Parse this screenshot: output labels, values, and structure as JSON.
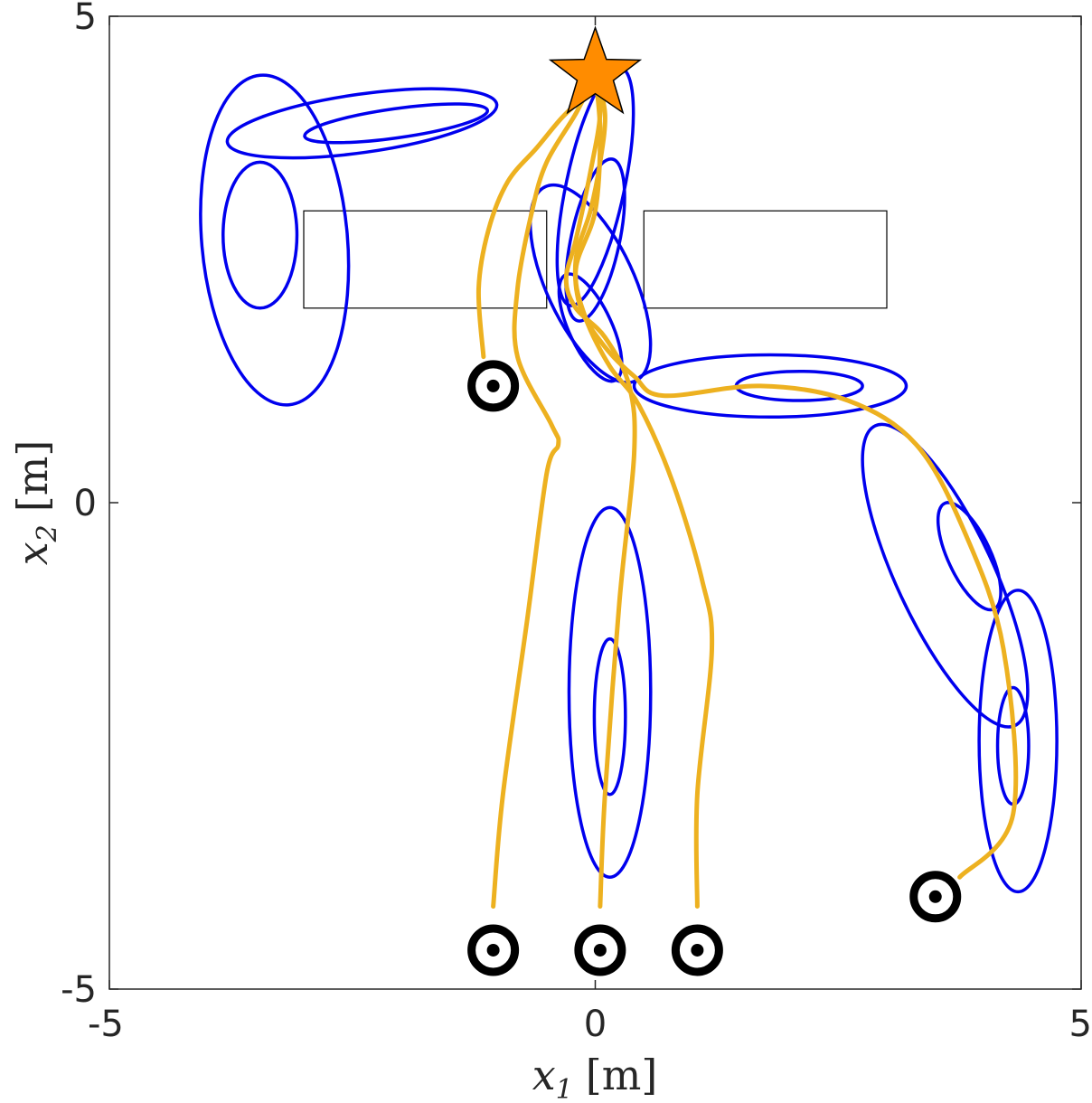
{
  "chart_data": {
    "type": "line",
    "title": "",
    "xlabel": {
      "var": "x",
      "sub": "1",
      "unit": "[m]"
    },
    "ylabel": {
      "var": "x",
      "sub": "2",
      "unit": "[m]"
    },
    "xlim": [
      -5,
      5
    ],
    "ylim": [
      -5,
      5
    ],
    "x_ticks": [
      -5,
      0,
      5
    ],
    "y_ticks": [
      -5,
      0,
      5
    ],
    "x_tick_labels": [
      "-5",
      "0",
      "5"
    ],
    "y_tick_labels": [
      "-5",
      "0",
      "5"
    ],
    "grid": false,
    "colors": {
      "trajectory": "#EDB120",
      "ellipse": "#0000EE",
      "obstacle": "#000000",
      "goal": "#FF8C00",
      "start": "#000000"
    },
    "obstacles": [
      {
        "x": [
          -3.0,
          -0.5
        ],
        "y": [
          2.0,
          3.0
        ]
      },
      {
        "x": [
          0.5,
          3.0
        ],
        "y": [
          2.0,
          3.0
        ]
      }
    ],
    "goal": {
      "x": 0.0,
      "y": 4.4
    },
    "starts": [
      {
        "x": -1.05,
        "y": 1.2
      },
      {
        "x": -1.05,
        "y": -4.6
      },
      {
        "x": 0.05,
        "y": -4.6
      },
      {
        "x": 1.05,
        "y": -4.6
      },
      {
        "x": 3.5,
        "y": -4.05
      }
    ],
    "ellipses": [
      {
        "cx": -2.4,
        "cy": 3.9,
        "rx": 1.4,
        "ry": 0.3,
        "angle": 8
      },
      {
        "cx": -2.05,
        "cy": 3.9,
        "rx": 0.95,
        "ry": 0.15,
        "angle": 8
      },
      {
        "cx": -3.3,
        "cy": 2.7,
        "rx": 0.75,
        "ry": 1.7,
        "angle": 5
      },
      {
        "cx": -3.45,
        "cy": 2.75,
        "rx": 0.38,
        "ry": 0.75,
        "angle": 0
      },
      {
        "cx": 0.0,
        "cy": 3.25,
        "rx": 0.3,
        "ry": 1.25,
        "angle": -12
      },
      {
        "cx": 0.0,
        "cy": 2.7,
        "rx": 0.25,
        "ry": 0.85,
        "angle": -12
      },
      {
        "cx": -0.05,
        "cy": 2.25,
        "rx": 0.45,
        "ry": 1.1,
        "angle": 25
      },
      {
        "cx": -0.05,
        "cy": 1.8,
        "rx": 0.22,
        "ry": 0.6,
        "angle": 25
      },
      {
        "cx": 1.8,
        "cy": 1.2,
        "rx": 1.4,
        "ry": 0.32,
        "angle": 0
      },
      {
        "cx": 2.1,
        "cy": 1.2,
        "rx": 0.65,
        "ry": 0.15,
        "angle": 0
      },
      {
        "cx": 3.6,
        "cy": -0.75,
        "rx": 0.5,
        "ry": 1.7,
        "angle": 25
      },
      {
        "cx": 3.85,
        "cy": -0.55,
        "rx": 0.22,
        "ry": 0.6,
        "angle": 25
      },
      {
        "cx": 4.35,
        "cy": -2.45,
        "rx": 0.4,
        "ry": 1.55,
        "angle": 0
      },
      {
        "cx": 4.3,
        "cy": -2.5,
        "rx": 0.16,
        "ry": 0.6,
        "angle": 0
      },
      {
        "cx": 0.15,
        "cy": -1.95,
        "rx": 0.42,
        "ry": 1.9,
        "angle": 0
      },
      {
        "cx": 0.15,
        "cy": -2.2,
        "rx": 0.16,
        "ry": 0.8,
        "angle": 0
      }
    ],
    "series": [
      {
        "x": [
          -1.15,
          -1.2,
          -1.1,
          -0.9,
          -0.6,
          -0.35,
          -0.1,
          0.0
        ],
        "y": [
          1.5,
          2.2,
          2.8,
          3.3,
          3.65,
          3.95,
          4.2,
          4.4
        ]
      },
      {
        "x": [
          -1.05,
          -0.95,
          -0.7,
          -0.5,
          -0.38,
          -0.45,
          -0.8,
          -0.8,
          -0.65,
          -0.5,
          -0.2,
          0.0
        ],
        "y": [
          -4.15,
          -3.0,
          -1.2,
          0.3,
          0.6,
          0.8,
          1.5,
          2.2,
          3.0,
          3.5,
          4.0,
          4.4
        ]
      },
      {
        "x": [
          0.05,
          0.1,
          0.25,
          0.4,
          0.35,
          0.1,
          -0.2,
          -0.3,
          -0.2,
          -0.05,
          0.05,
          0.0
        ],
        "y": [
          -4.15,
          -3.0,
          -1.0,
          0.5,
          1.2,
          1.7,
          2.0,
          2.3,
          2.7,
          3.4,
          4.0,
          4.4
        ]
      },
      {
        "x": [
          1.05,
          1.05,
          1.2,
          1.1,
          0.8,
          0.45,
          0.15,
          -0.1,
          -0.2,
          0.0,
          0.05,
          0.0
        ],
        "y": [
          -4.15,
          -3.0,
          -1.5,
          -0.8,
          0.2,
          1.0,
          1.4,
          1.9,
          2.4,
          3.0,
          3.8,
          4.4
        ]
      },
      {
        "x": [
          3.75,
          4.3,
          4.2,
          3.8,
          3.3,
          2.6,
          1.7,
          0.7,
          0.4,
          0.1,
          -0.15,
          -0.2,
          -0.05,
          0.05,
          0.1,
          0.0
        ],
        "y": [
          -3.85,
          -3.2,
          -1.5,
          -0.3,
          0.6,
          1.05,
          1.2,
          1.1,
          1.3,
          1.6,
          2.0,
          2.5,
          3.0,
          3.5,
          4.0,
          4.4
        ]
      }
    ]
  }
}
